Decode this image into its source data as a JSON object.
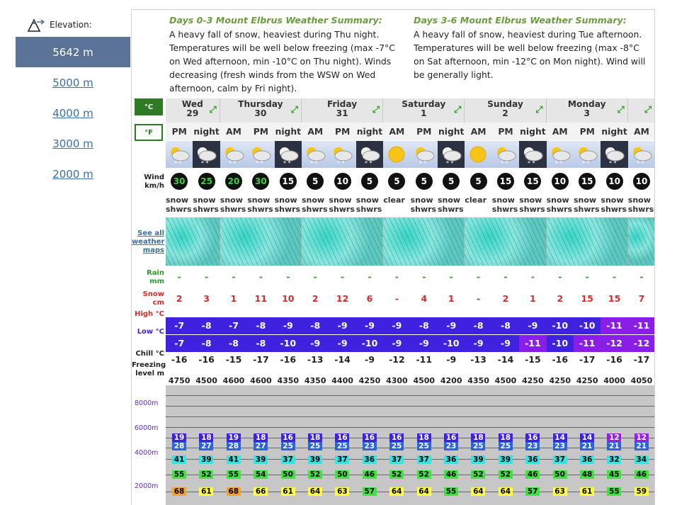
{
  "sidebar": {
    "title": "Elevation:",
    "items": [
      "5642 m",
      "5000 m",
      "4000 m",
      "3000 m",
      "2000 m"
    ],
    "active": 0
  },
  "summary": {
    "left_title": "Days 0-3 Mount Elbrus Weather Summary:",
    "left_text": "A heavy fall of snow, heaviest during Thu night. Temperatures will be well below freezing (max -7°C on Wed afternoon, min -10°C on Thu night). Winds decreasing (fresh winds from the WSW on Wed afternoon, calm by Fri night).",
    "right_title": "Days 3-6 Mount Elbrus Weather Summary:",
    "right_text": "A heavy fall of snow, heaviest during Tue afternoon. Temperatures will be well below freezing (max -8°C on Sat afternoon, min -12°C on Mon night). Wind will be generally light."
  },
  "units": {
    "c": "°C",
    "f": "°F"
  },
  "labels": {
    "wind": "Wind km/h",
    "maps": "See all weather maps",
    "rain": "Rain mm",
    "snow": "Snow cm",
    "high": "High °C",
    "low": "Low °C",
    "chill": "Chill °C",
    "freezing": "Freezing level m"
  },
  "days": [
    {
      "name": "Wed",
      "num": "29",
      "cols": 2
    },
    {
      "name": "Thursday",
      "num": "30",
      "cols": 3
    },
    {
      "name": "Friday",
      "num": "31",
      "cols": 3
    },
    {
      "name": "Saturday",
      "num": "1",
      "cols": 3
    },
    {
      "name": "Sunday",
      "num": "2",
      "cols": 3
    },
    {
      "name": "Monday",
      "num": "3",
      "cols": 3
    },
    {
      "name": "",
      "num": "",
      "cols": 1
    }
  ],
  "periods": [
    "PM",
    "night",
    "AM",
    "PM",
    "night",
    "AM",
    "PM",
    "night",
    "AM",
    "PM",
    "night",
    "AM",
    "PM",
    "night",
    "AM",
    "PM",
    "night",
    "AM"
  ],
  "wind": [
    "30",
    "25",
    "20",
    "30",
    "15",
    "5",
    "10",
    "5",
    "5",
    "5",
    "5",
    "5",
    "15",
    "15",
    "10",
    "15",
    "10",
    "10"
  ],
  "wind_colors": [
    "#3dd13d",
    "#3dd13d",
    "#3dd13d",
    "#3dd13d",
    "#fff",
    "#fff",
    "#fff",
    "#fff",
    "#fff",
    "#fff",
    "#fff",
    "#fff",
    "#fff",
    "#fff",
    "#fff",
    "#fff",
    "#fff",
    "#fff"
  ],
  "weather": [
    "snow shwrs",
    "snow shwrs",
    "snow shwrs",
    "snow shwrs",
    "snow shwrs",
    "snow shwrs",
    "snow shwrs",
    "snow shwrs",
    "clear",
    "snow shwrs",
    "snow shwrs",
    "clear",
    "snow shwrs",
    "snow shwrs",
    "snow shwrs",
    "snow shwrs",
    "snow shwrs",
    "snow shwrs"
  ],
  "rain": [
    "-",
    "-",
    "-",
    "-",
    "-",
    "-",
    "-",
    "-",
    "-",
    "-",
    "-",
    "-",
    "-",
    "-",
    "-",
    "-",
    "-",
    "-"
  ],
  "snow": [
    "2",
    "3",
    "1",
    "11",
    "10",
    "2",
    "12",
    "6",
    "-",
    "4",
    "1",
    "-",
    "2",
    "1",
    "2",
    "15",
    "15",
    "7"
  ],
  "high": [
    "-7",
    "-8",
    "-7",
    "-8",
    "-9",
    "-8",
    "-9",
    "-9",
    "-9",
    "-8",
    "-9",
    "-8",
    "-8",
    "-9",
    "-10",
    "-10",
    "-11",
    "-11"
  ],
  "low": [
    "-7",
    "-8",
    "-8",
    "-8",
    "-10",
    "-9",
    "-9",
    "-10",
    "-9",
    "-9",
    "-10",
    "-9",
    "-9",
    "-11",
    "-10",
    "-11",
    "-12",
    "-12"
  ],
  "chill": [
    "-16",
    "-16",
    "-15",
    "-17",
    "-16",
    "-13",
    "-14",
    "-9",
    "-12",
    "-11",
    "-9",
    "-13",
    "-14",
    "-15",
    "-16",
    "-17",
    "-16",
    "-17"
  ],
  "freezing": [
    "4750",
    "4500",
    "4600",
    "4600",
    "4350",
    "4350",
    "4400",
    "4250",
    "4300",
    "4500",
    "4200",
    "4350",
    "4500",
    "4250",
    "4250",
    "4250",
    "4000",
    "4050"
  ],
  "altitude": {
    "labels": [
      "8000m",
      "6000m",
      "4000m",
      "2000m"
    ],
    "rows": [
      [
        "19",
        "18",
        "19",
        "18",
        "16",
        "18",
        "16",
        "16",
        "16",
        "18",
        "16",
        "18",
        "18",
        "16",
        "14",
        "14",
        "12",
        "12"
      ],
      [
        "28",
        "27",
        "28",
        "27",
        "25",
        "25",
        "25",
        "23",
        "25",
        "25",
        "23",
        "25",
        "25",
        "23",
        "23",
        "21",
        "21",
        "21"
      ],
      [
        "41",
        "39",
        "41",
        "39",
        "37",
        "39",
        "37",
        "36",
        "37",
        "37",
        "36",
        "39",
        "39",
        "36",
        "37",
        "36",
        "32",
        "34"
      ],
      [
        "55",
        "52",
        "55",
        "54",
        "50",
        "52",
        "50",
        "46",
        "52",
        "52",
        "46",
        "52",
        "52",
        "46",
        "50",
        "48",
        "45",
        "46"
      ],
      [
        "68",
        "61",
        "68",
        "66",
        "61",
        "64",
        "63",
        "57",
        "64",
        "64",
        "55",
        "64",
        "64",
        "57",
        "63",
        "61",
        "55",
        "59"
      ]
    ]
  },
  "colors": {
    "accent": "#6a9d3c",
    "high_bg": "#3e22e0",
    "low_bg": "#3e22e0",
    "cold_bg": "#8a1ee6"
  }
}
